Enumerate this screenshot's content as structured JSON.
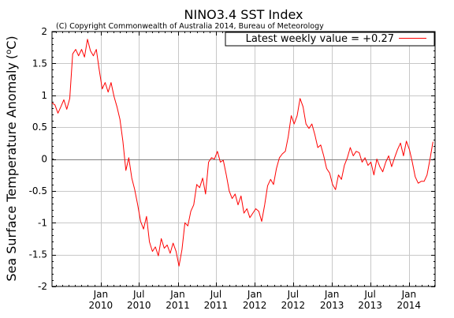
{
  "chart_data": {
    "type": "line",
    "title": "NINO3.4 SST Index",
    "subtitle": "(C) Copyright Commonwealth of Australia 2014, Bureau of Meteorology",
    "ylabel": "Sea Surface Temperature Anomaly",
    "ylabel_unit_base": "o",
    "ylabel_unit_c": "C",
    "xlabel": "",
    "ylim": [
      -2,
      2
    ],
    "xlim": [
      "2009-05-15",
      "2014-05-05"
    ],
    "y_ticks": [
      {
        "value": -2,
        "label": "-2"
      },
      {
        "value": -1.5,
        "label": "-1.5"
      },
      {
        "value": -1,
        "label": "-1"
      },
      {
        "value": -0.5,
        "label": "-0.5"
      },
      {
        "value": 0,
        "label": "0"
      },
      {
        "value": 0.5,
        "label": "0.5"
      },
      {
        "value": 1,
        "label": "1"
      },
      {
        "value": 1.5,
        "label": "1.5"
      },
      {
        "value": 2,
        "label": "2"
      }
    ],
    "x_ticks": [
      {
        "date": "2010-01-01",
        "month": "Jan",
        "year": "2010"
      },
      {
        "date": "2010-07-01",
        "month": "Jul",
        "year": "2010"
      },
      {
        "date": "2011-01-01",
        "month": "Jan",
        "year": "2011"
      },
      {
        "date": "2011-07-01",
        "month": "Jul",
        "year": "2011"
      },
      {
        "date": "2012-01-01",
        "month": "Jan",
        "year": "2012"
      },
      {
        "date": "2012-07-01",
        "month": "Jul",
        "year": "2012"
      },
      {
        "date": "2013-01-01",
        "month": "Jan",
        "year": "2013"
      },
      {
        "date": "2013-07-01",
        "month": "Jul",
        "year": "2013"
      },
      {
        "date": "2014-01-01",
        "month": "Jan",
        "year": "2014"
      }
    ],
    "grid": true,
    "zero_line": true,
    "legend_position": "top-right",
    "series": [
      {
        "name": "Latest weekly value = +0.27",
        "color": "#ff0000",
        "points": [
          [
            "2009-05-15",
            0.88
          ],
          [
            "2009-05-29",
            0.85
          ],
          [
            "2009-06-12",
            0.72
          ],
          [
            "2009-06-26",
            0.82
          ],
          [
            "2009-07-10",
            0.93
          ],
          [
            "2009-07-24",
            0.78
          ],
          [
            "2009-08-07",
            0.95
          ],
          [
            "2009-08-21",
            1.65
          ],
          [
            "2009-09-04",
            1.72
          ],
          [
            "2009-09-18",
            1.62
          ],
          [
            "2009-10-02",
            1.72
          ],
          [
            "2009-10-16",
            1.6
          ],
          [
            "2009-10-30",
            1.88
          ],
          [
            "2009-11-13",
            1.7
          ],
          [
            "2009-11-27",
            1.62
          ],
          [
            "2009-12-11",
            1.72
          ],
          [
            "2009-12-25",
            1.4
          ],
          [
            "2010-01-08",
            1.1
          ],
          [
            "2010-01-22",
            1.2
          ],
          [
            "2010-02-05",
            1.05
          ],
          [
            "2010-02-19",
            1.2
          ],
          [
            "2010-03-05",
            0.98
          ],
          [
            "2010-03-19",
            0.82
          ],
          [
            "2010-04-02",
            0.62
          ],
          [
            "2010-04-16",
            0.28
          ],
          [
            "2010-04-30",
            -0.18
          ],
          [
            "2010-05-14",
            0.02
          ],
          [
            "2010-05-28",
            -0.3
          ],
          [
            "2010-06-11",
            -0.48
          ],
          [
            "2010-06-25",
            -0.72
          ],
          [
            "2010-07-09",
            -0.98
          ],
          [
            "2010-07-23",
            -1.1
          ],
          [
            "2010-08-06",
            -0.9
          ],
          [
            "2010-08-20",
            -1.3
          ],
          [
            "2010-09-03",
            -1.45
          ],
          [
            "2010-09-17",
            -1.38
          ],
          [
            "2010-10-01",
            -1.52
          ],
          [
            "2010-10-15",
            -1.25
          ],
          [
            "2010-10-29",
            -1.4
          ],
          [
            "2010-11-12",
            -1.35
          ],
          [
            "2010-11-26",
            -1.48
          ],
          [
            "2010-12-10",
            -1.32
          ],
          [
            "2010-12-24",
            -1.45
          ],
          [
            "2011-01-07",
            -1.68
          ],
          [
            "2011-01-21",
            -1.42
          ],
          [
            "2011-02-04",
            -1.0
          ],
          [
            "2011-02-18",
            -1.05
          ],
          [
            "2011-03-04",
            -0.82
          ],
          [
            "2011-03-18",
            -0.72
          ],
          [
            "2011-04-01",
            -0.4
          ],
          [
            "2011-04-15",
            -0.45
          ],
          [
            "2011-04-29",
            -0.3
          ],
          [
            "2011-05-13",
            -0.55
          ],
          [
            "2011-05-27",
            -0.05
          ],
          [
            "2011-06-10",
            0.02
          ],
          [
            "2011-06-24",
            0.0
          ],
          [
            "2011-07-08",
            0.12
          ],
          [
            "2011-07-22",
            -0.05
          ],
          [
            "2011-08-05",
            -0.02
          ],
          [
            "2011-08-19",
            -0.25
          ],
          [
            "2011-09-02",
            -0.5
          ],
          [
            "2011-09-16",
            -0.62
          ],
          [
            "2011-09-30",
            -0.55
          ],
          [
            "2011-10-14",
            -0.72
          ],
          [
            "2011-10-28",
            -0.58
          ],
          [
            "2011-11-11",
            -0.85
          ],
          [
            "2011-11-25",
            -0.78
          ],
          [
            "2011-12-09",
            -0.92
          ],
          [
            "2011-12-23",
            -0.85
          ],
          [
            "2012-01-06",
            -0.78
          ],
          [
            "2012-01-20",
            -0.82
          ],
          [
            "2012-02-03",
            -0.98
          ],
          [
            "2012-02-17",
            -0.72
          ],
          [
            "2012-03-02",
            -0.42
          ],
          [
            "2012-03-16",
            -0.32
          ],
          [
            "2012-03-30",
            -0.4
          ],
          [
            "2012-04-13",
            -0.15
          ],
          [
            "2012-04-27",
            0.02
          ],
          [
            "2012-05-11",
            0.08
          ],
          [
            "2012-05-25",
            0.12
          ],
          [
            "2012-06-08",
            0.35
          ],
          [
            "2012-06-22",
            0.68
          ],
          [
            "2012-07-06",
            0.55
          ],
          [
            "2012-07-20",
            0.68
          ],
          [
            "2012-08-03",
            0.95
          ],
          [
            "2012-08-17",
            0.82
          ],
          [
            "2012-08-31",
            0.55
          ],
          [
            "2012-09-14",
            0.48
          ],
          [
            "2012-09-28",
            0.55
          ],
          [
            "2012-10-12",
            0.38
          ],
          [
            "2012-10-26",
            0.18
          ],
          [
            "2012-11-09",
            0.22
          ],
          [
            "2012-11-23",
            0.05
          ],
          [
            "2012-12-07",
            -0.15
          ],
          [
            "2012-12-21",
            -0.22
          ],
          [
            "2013-01-04",
            -0.4
          ],
          [
            "2013-01-18",
            -0.48
          ],
          [
            "2013-02-01",
            -0.25
          ],
          [
            "2013-02-15",
            -0.32
          ],
          [
            "2013-03-01",
            -0.1
          ],
          [
            "2013-03-15",
            0.02
          ],
          [
            "2013-03-29",
            0.18
          ],
          [
            "2013-04-12",
            0.05
          ],
          [
            "2013-04-26",
            0.12
          ],
          [
            "2013-05-10",
            0.1
          ],
          [
            "2013-05-24",
            -0.05
          ],
          [
            "2013-06-07",
            0.02
          ],
          [
            "2013-06-21",
            -0.1
          ],
          [
            "2013-07-05",
            -0.05
          ],
          [
            "2013-07-19",
            -0.25
          ],
          [
            "2013-08-02",
            0.0
          ],
          [
            "2013-08-16",
            -0.12
          ],
          [
            "2013-08-30",
            -0.2
          ],
          [
            "2013-09-13",
            -0.05
          ],
          [
            "2013-09-27",
            0.05
          ],
          [
            "2013-10-11",
            -0.12
          ],
          [
            "2013-10-25",
            0.02
          ],
          [
            "2013-11-08",
            0.15
          ],
          [
            "2013-11-22",
            0.25
          ],
          [
            "2013-12-06",
            0.05
          ],
          [
            "2013-12-20",
            0.28
          ],
          [
            "2014-01-03",
            0.15
          ],
          [
            "2014-01-17",
            -0.05
          ],
          [
            "2014-01-31",
            -0.28
          ],
          [
            "2014-02-14",
            -0.38
          ],
          [
            "2014-02-28",
            -0.35
          ],
          [
            "2014-03-14",
            -0.35
          ],
          [
            "2014-03-28",
            -0.25
          ],
          [
            "2014-04-11",
            0.0
          ],
          [
            "2014-04-25",
            0.27
          ]
        ]
      }
    ]
  }
}
